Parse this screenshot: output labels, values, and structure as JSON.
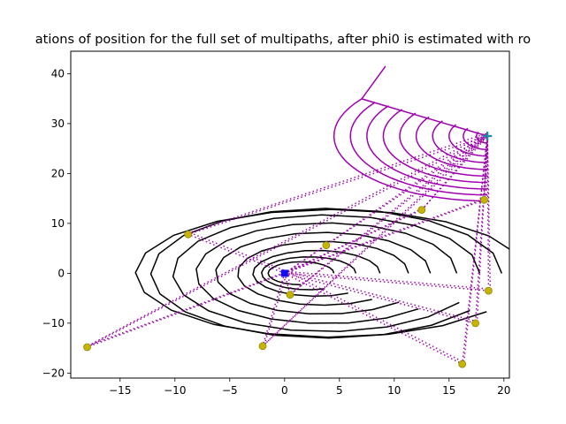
{
  "chart_data": {
    "type": "line",
    "title": "ations of position for the full set of multipaths, after phi0 is estimated with ro",
    "xlabel": "",
    "ylabel": "",
    "xlim": [
      -19.5,
      20.5
    ],
    "ylim": [
      -21,
      44.5
    ],
    "xticks": [
      -15,
      -10,
      -5,
      0,
      5,
      10,
      15,
      20
    ],
    "yticks": [
      -20,
      -10,
      0,
      10,
      20,
      30,
      40
    ],
    "xtick_labels": [
      "−15",
      "−10",
      "−5",
      "0",
      "5",
      "10",
      "15",
      "20"
    ],
    "ytick_labels": [
      "−20",
      "−10",
      "0",
      "10",
      "20",
      "30",
      "40"
    ],
    "grid": false,
    "colors": {
      "black_contours": "#000000",
      "purple_curves": "#a000b0",
      "dotted_paths": "#9a0aa8",
      "reflectors": "#c8b400",
      "reflector_edge": "#8a8a10",
      "receiver": "#1010ee",
      "transmitter": "#1a8aa8"
    },
    "receiver": {
      "x": 0,
      "y": 0
    },
    "transmitter": {
      "x": 18.5,
      "y": 27.5
    },
    "reflectors": [
      {
        "x": -18.0,
        "y": -14.8
      },
      {
        "x": -8.8,
        "y": 7.8
      },
      {
        "x": -2.0,
        "y": -14.6
      },
      {
        "x": 0.5,
        "y": -4.3
      },
      {
        "x": 3.8,
        "y": 5.6
      },
      {
        "x": 12.5,
        "y": 12.7
      },
      {
        "x": 18.2,
        "y": 14.7
      },
      {
        "x": 18.6,
        "y": -3.5
      },
      {
        "x": 17.4,
        "y": -10.0
      },
      {
        "x": 16.2,
        "y": -18.2
      }
    ],
    "black_contours": [
      {
        "cx": 1.5,
        "rx": 3.0,
        "ry": 2.3,
        "start_deg": 0,
        "end_deg": 270
      },
      {
        "cx": 2.2,
        "rx": 4.3,
        "ry": 3.3,
        "start_deg": 0,
        "end_deg": 290
      },
      {
        "cx": 2.9,
        "rx": 5.8,
        "ry": 4.6,
        "start_deg": 0,
        "end_deg": 300
      },
      {
        "cx": 3.5,
        "rx": 7.8,
        "ry": 6.4,
        "start_deg": 0,
        "end_deg": 305
      },
      {
        "cx": 3.5,
        "rx": 9.8,
        "ry": 8.2,
        "start_deg": 0,
        "end_deg": 315
      },
      {
        "cx": 3.8,
        "rx": 11.9,
        "ry": 10.1,
        "start_deg": 0,
        "end_deg": 315
      },
      {
        "cx": 3.8,
        "rx": 14.0,
        "ry": 11.7,
        "start_deg": 0,
        "end_deg": 330
      },
      {
        "cx": 3.8,
        "rx": 16.0,
        "ry": 13.0,
        "start_deg": 0,
        "end_deg": 325
      },
      {
        "cx": 4.2,
        "rx": 17.8,
        "ry": 12.8,
        "start_deg": 0,
        "end_deg": 323
      }
    ],
    "purple_curves": {
      "cx": 18.5,
      "cy": 27.5,
      "slope_theta_deg": 145,
      "steps": [
        {
          "rx": 1.0,
          "ry": 1.4
        },
        {
          "rx": 2.2,
          "ry": 2.7
        },
        {
          "rx": 3.5,
          "ry": 4.0
        },
        {
          "rx": 5.0,
          "ry": 5.3
        },
        {
          "rx": 6.5,
          "ry": 6.7
        },
        {
          "rx": 8.0,
          "ry": 8.0
        },
        {
          "rx": 9.5,
          "ry": 9.3
        },
        {
          "rx": 11.0,
          "ry": 10.6
        },
        {
          "rx": 12.5,
          "ry": 11.8
        },
        {
          "rx": 14.0,
          "ry": 13.0
        }
      ],
      "tail": [
        9.2,
        41.5
      ]
    }
  }
}
